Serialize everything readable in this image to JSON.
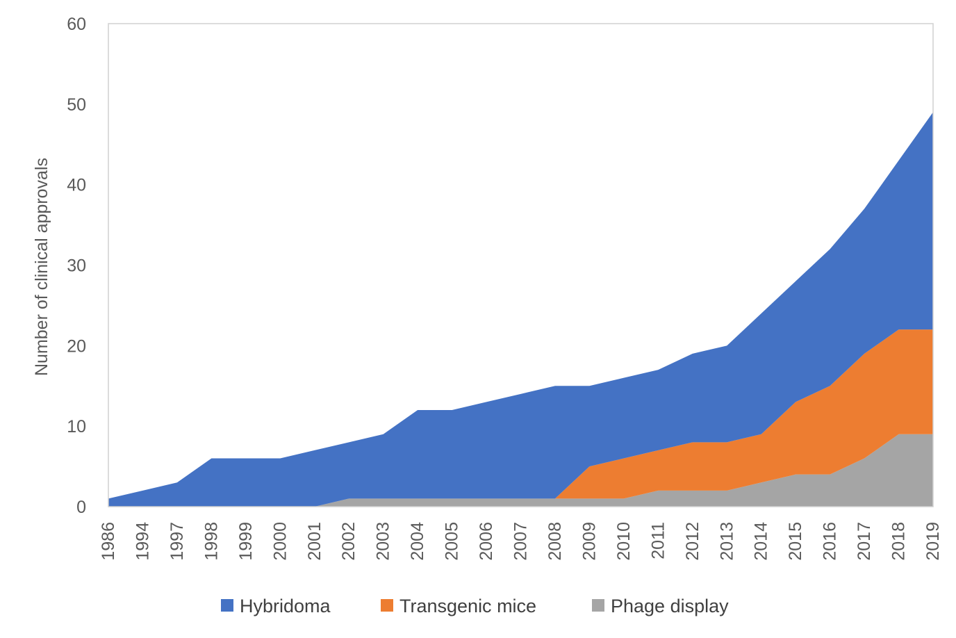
{
  "chart_data": {
    "type": "area",
    "stacked": true,
    "categories": [
      "1986",
      "1994",
      "1997",
      "1998",
      "1999",
      "2000",
      "2001",
      "2002",
      "2003",
      "2004",
      "2005",
      "2006",
      "2007",
      "2008",
      "2009",
      "2010",
      "2011",
      "2012",
      "2013",
      "2014",
      "2015",
      "2016",
      "2017",
      "2018",
      "2019"
    ],
    "series": [
      {
        "name": "Phage display",
        "color": "#a5a5a5",
        "values": [
          0,
          0,
          0,
          0,
          0,
          0,
          0,
          1,
          1,
          1,
          1,
          1,
          1,
          1,
          1,
          1,
          2,
          2,
          2,
          3,
          4,
          4,
          6,
          9,
          9
        ]
      },
      {
        "name": "Transgenic mice",
        "color": "#ed7d31",
        "values": [
          0,
          0,
          0,
          0,
          0,
          0,
          0,
          0,
          0,
          0,
          0,
          0,
          0,
          0,
          4,
          5,
          5,
          6,
          6,
          6,
          9,
          11,
          13,
          13,
          13
        ]
      },
      {
        "name": "Hybridoma",
        "color": "#4472c4",
        "values": [
          1,
          2,
          3,
          6,
          6,
          6,
          7,
          7,
          8,
          11,
          11,
          12,
          13,
          14,
          10,
          10,
          10,
          11,
          12,
          15,
          15,
          17,
          18,
          21,
          27
        ]
      }
    ],
    "title": "",
    "xlabel": "",
    "ylabel": "Number of clinical approvals",
    "ylim": [
      0,
      60
    ],
    "yticks": [
      0,
      10,
      20,
      30,
      40,
      50,
      60
    ],
    "legend": {
      "position": "bottom",
      "order": [
        "Hybridoma",
        "Transgenic mice",
        "Phage display"
      ]
    },
    "grid": false
  }
}
